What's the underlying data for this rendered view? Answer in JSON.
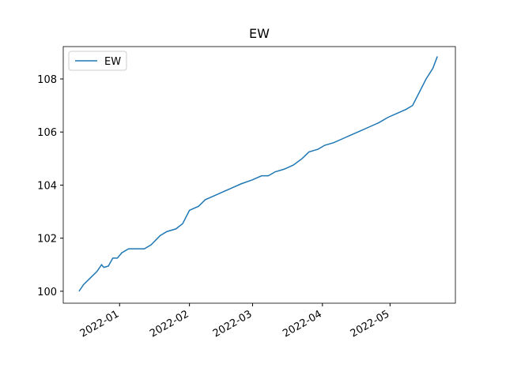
{
  "chart_data": {
    "type": "line",
    "title": "EW",
    "x": [
      "2021-12-14",
      "2021-12-16",
      "2021-12-19",
      "2021-12-22",
      "2021-12-24",
      "2021-12-25",
      "2021-12-27",
      "2021-12-29",
      "2021-12-31",
      "2022-01-02",
      "2022-01-05",
      "2022-01-12",
      "2022-01-15",
      "2022-01-19",
      "2022-01-22",
      "2022-01-26",
      "2022-01-29",
      "2022-02-01",
      "2022-02-05",
      "2022-02-08",
      "2022-02-12",
      "2022-02-16",
      "2022-02-20",
      "2022-02-24",
      "2022-03-01",
      "2022-03-05",
      "2022-03-08",
      "2022-03-11",
      "2022-03-15",
      "2022-03-19",
      "2022-03-23",
      "2022-03-26",
      "2022-03-30",
      "2022-04-02",
      "2022-04-06",
      "2022-04-10",
      "2022-04-14",
      "2022-04-18",
      "2022-04-22",
      "2022-04-26",
      "2022-04-30",
      "2022-05-04",
      "2022-05-08",
      "2022-05-11",
      "2022-05-14",
      "2022-05-17",
      "2022-05-20",
      "2022-05-22"
    ],
    "series": [
      {
        "name": "EW",
        "color": "#1f77b4",
        "values": [
          100.0,
          100.25,
          100.5,
          100.75,
          101.0,
          100.9,
          100.95,
          101.25,
          101.25,
          101.45,
          101.6,
          101.6,
          101.75,
          102.1,
          102.25,
          102.35,
          102.55,
          103.05,
          103.2,
          103.45,
          103.6,
          103.75,
          103.9,
          104.05,
          104.2,
          104.35,
          104.35,
          104.5,
          104.6,
          104.75,
          105.0,
          105.25,
          105.35,
          105.5,
          105.6,
          105.75,
          105.9,
          106.05,
          106.2,
          106.35,
          106.55,
          106.7,
          106.85,
          107.0,
          107.5,
          108.0,
          108.4,
          108.85
        ]
      }
    ],
    "xlim": [
      "2021-12-07",
      "2022-05-30"
    ],
    "xticks": [
      {
        "value": "2022-01-01",
        "label": "2022-01"
      },
      {
        "value": "2022-02-01",
        "label": "2022-02"
      },
      {
        "value": "2022-03-01",
        "label": "2022-03"
      },
      {
        "value": "2022-04-01",
        "label": "2022-04"
      },
      {
        "value": "2022-05-01",
        "label": "2022-05"
      }
    ],
    "ylim": [
      99.55,
      109.22
    ],
    "yticks": [
      100,
      102,
      104,
      106,
      108
    ],
    "grid": false,
    "legend": "upper left"
  }
}
